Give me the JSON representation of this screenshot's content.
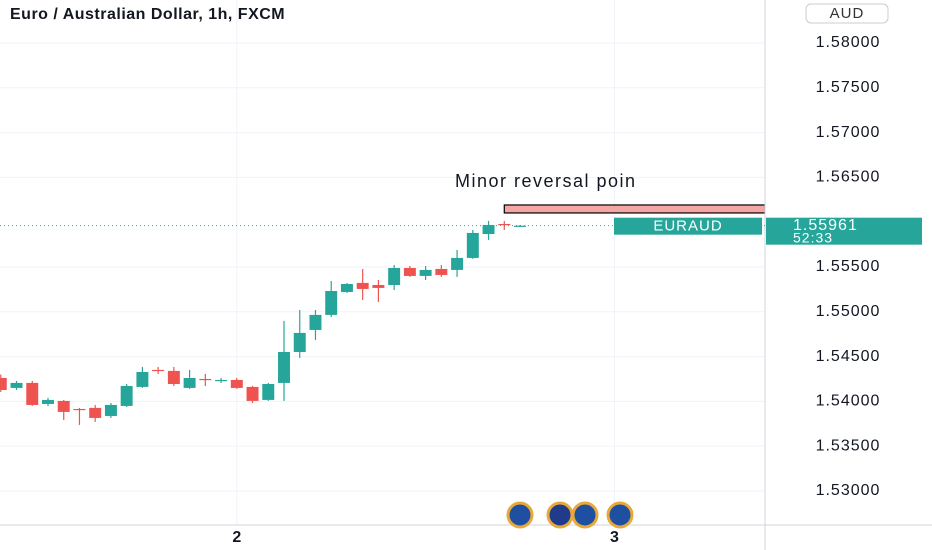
{
  "chart_data": {
    "type": "candlestick",
    "title": "Euro / Australian Dollar, 1h, FXCM",
    "currency": "AUD",
    "symbol": "EURAUD",
    "countdown": "52:33",
    "annotation": "Minor reversal poin",
    "zone": {
      "low": 1.56103,
      "high": 1.56192,
      "start": 32
    },
    "up_color": "#26a69a",
    "down_color": "#ef5350",
    "zone_color": "#f4a6a4",
    "grid": true,
    "x": [
      0,
      1,
      2,
      3,
      4,
      5,
      6,
      7,
      8,
      9,
      10,
      11,
      12,
      13,
      14,
      15,
      16,
      17,
      18,
      19,
      20,
      21,
      22,
      23,
      24,
      25,
      26,
      27,
      28,
      29,
      30,
      31,
      32,
      33
    ],
    "open": [
      1.54261,
      1.5415,
      1.54206,
      1.53971,
      1.54005,
      1.53915,
      1.53927,
      1.53837,
      1.53949,
      1.54161,
      1.54351,
      1.5434,
      1.5415,
      1.5425,
      1.54228,
      1.54239,
      1.54161,
      1.54016,
      1.54206,
      1.54551,
      1.54797,
      1.54965,
      1.55221,
      1.55322,
      1.55299,
      1.55299,
      1.55489,
      1.554,
      1.55478,
      1.55467,
      1.55601,
      1.55868,
      1.5598,
      1.5595
    ],
    "high": [
      1.543,
      1.54228,
      1.54228,
      1.54039,
      1.54016,
      1.53927,
      1.5396,
      1.53982,
      1.54194,
      1.54384,
      1.54384,
      1.54384,
      1.54351,
      1.54306,
      1.54261,
      1.54261,
      1.54172,
      1.54206,
      1.54898,
      1.5502,
      1.5502,
      1.55344,
      1.55322,
      1.55478,
      1.55355,
      1.55522,
      1.55511,
      1.55511,
      1.55522,
      1.5569,
      1.55913,
      1.56014,
      1.56014,
      1.55969
    ],
    "low": [
      1.54105,
      1.54127,
      1.53949,
      1.53949,
      1.53793,
      1.53737,
      1.5377,
      1.53815,
      1.53937,
      1.5415,
      1.54306,
      1.54172,
      1.54139,
      1.54172,
      1.54206,
      1.54139,
      1.53982,
      1.54005,
      1.54005,
      1.54485,
      1.54685,
      1.54942,
      1.5521,
      1.55132,
      1.5511,
      1.55243,
      1.55389,
      1.55355,
      1.55389,
      1.55389,
      1.5559,
      1.55802,
      1.55913,
      1.55947
    ],
    "close": [
      1.54127,
      1.54206,
      1.5396,
      1.54016,
      1.53882,
      1.53904,
      1.53815,
      1.5396,
      1.54172,
      1.54328,
      1.5434,
      1.54194,
      1.54261,
      1.54239,
      1.54239,
      1.5415,
      1.54005,
      1.54194,
      1.54551,
      1.54764,
      1.54965,
      1.55232,
      1.5531,
      1.55255,
      1.55266,
      1.55489,
      1.554,
      1.55467,
      1.55411,
      1.55601,
      1.5588,
      1.55969,
      1.55969,
      1.55961
    ],
    "xlim": [
      -0.05,
      48.57
    ],
    "xticks": [
      {
        "value": 15,
        "label": "2"
      },
      {
        "value": 39,
        "label": "3"
      }
    ],
    "ylim": [
      1.5262,
      1.5848
    ],
    "yticks": [
      {
        "value": 1.53,
        "label": "1.53000"
      },
      {
        "value": 1.535,
        "label": "1.53500"
      },
      {
        "value": 1.54,
        "label": "1.54000"
      },
      {
        "value": 1.545,
        "label": "1.54500"
      },
      {
        "value": 1.55,
        "label": "1.55000"
      },
      {
        "value": 1.555,
        "label": "1.55500"
      },
      {
        "value": 1.565,
        "label": "1.56500"
      },
      {
        "value": 1.57,
        "label": "1.57000"
      },
      {
        "value": 1.575,
        "label": "1.57500"
      },
      {
        "value": 1.58,
        "label": "1.58000"
      }
    ]
  }
}
